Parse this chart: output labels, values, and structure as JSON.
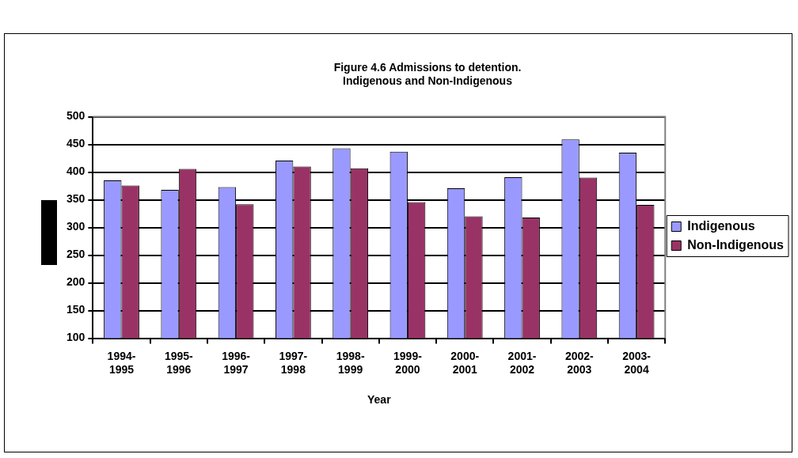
{
  "chart_data": {
    "type": "bar",
    "title": "Figure 4.6 Admissions to detention.\nIndigenous and Non-Indigenous",
    "xlabel": "Year",
    "categories": [
      "1994-1995",
      "1995-1996",
      "1996-1997",
      "1997-1998",
      "1998-1999",
      "1999-2000",
      "2000-2001",
      "2001-2002",
      "2002-2003",
      "2003-2004"
    ],
    "series": [
      {
        "name": "Indigenous",
        "color": "#9999ff",
        "values": [
          385,
          368,
          373,
          421,
          443,
          437,
          371,
          391,
          459,
          435
        ]
      },
      {
        "name": "Non-Indigenous",
        "color": "#993366",
        "values": [
          376,
          406,
          342,
          410,
          407,
          346,
          320,
          318,
          390,
          341
        ]
      }
    ],
    "ylim": [
      100,
      500
    ],
    "yticks": [
      100,
      150,
      200,
      250,
      300,
      350,
      400,
      450,
      500
    ],
    "grid": "y",
    "legend": "right"
  }
}
